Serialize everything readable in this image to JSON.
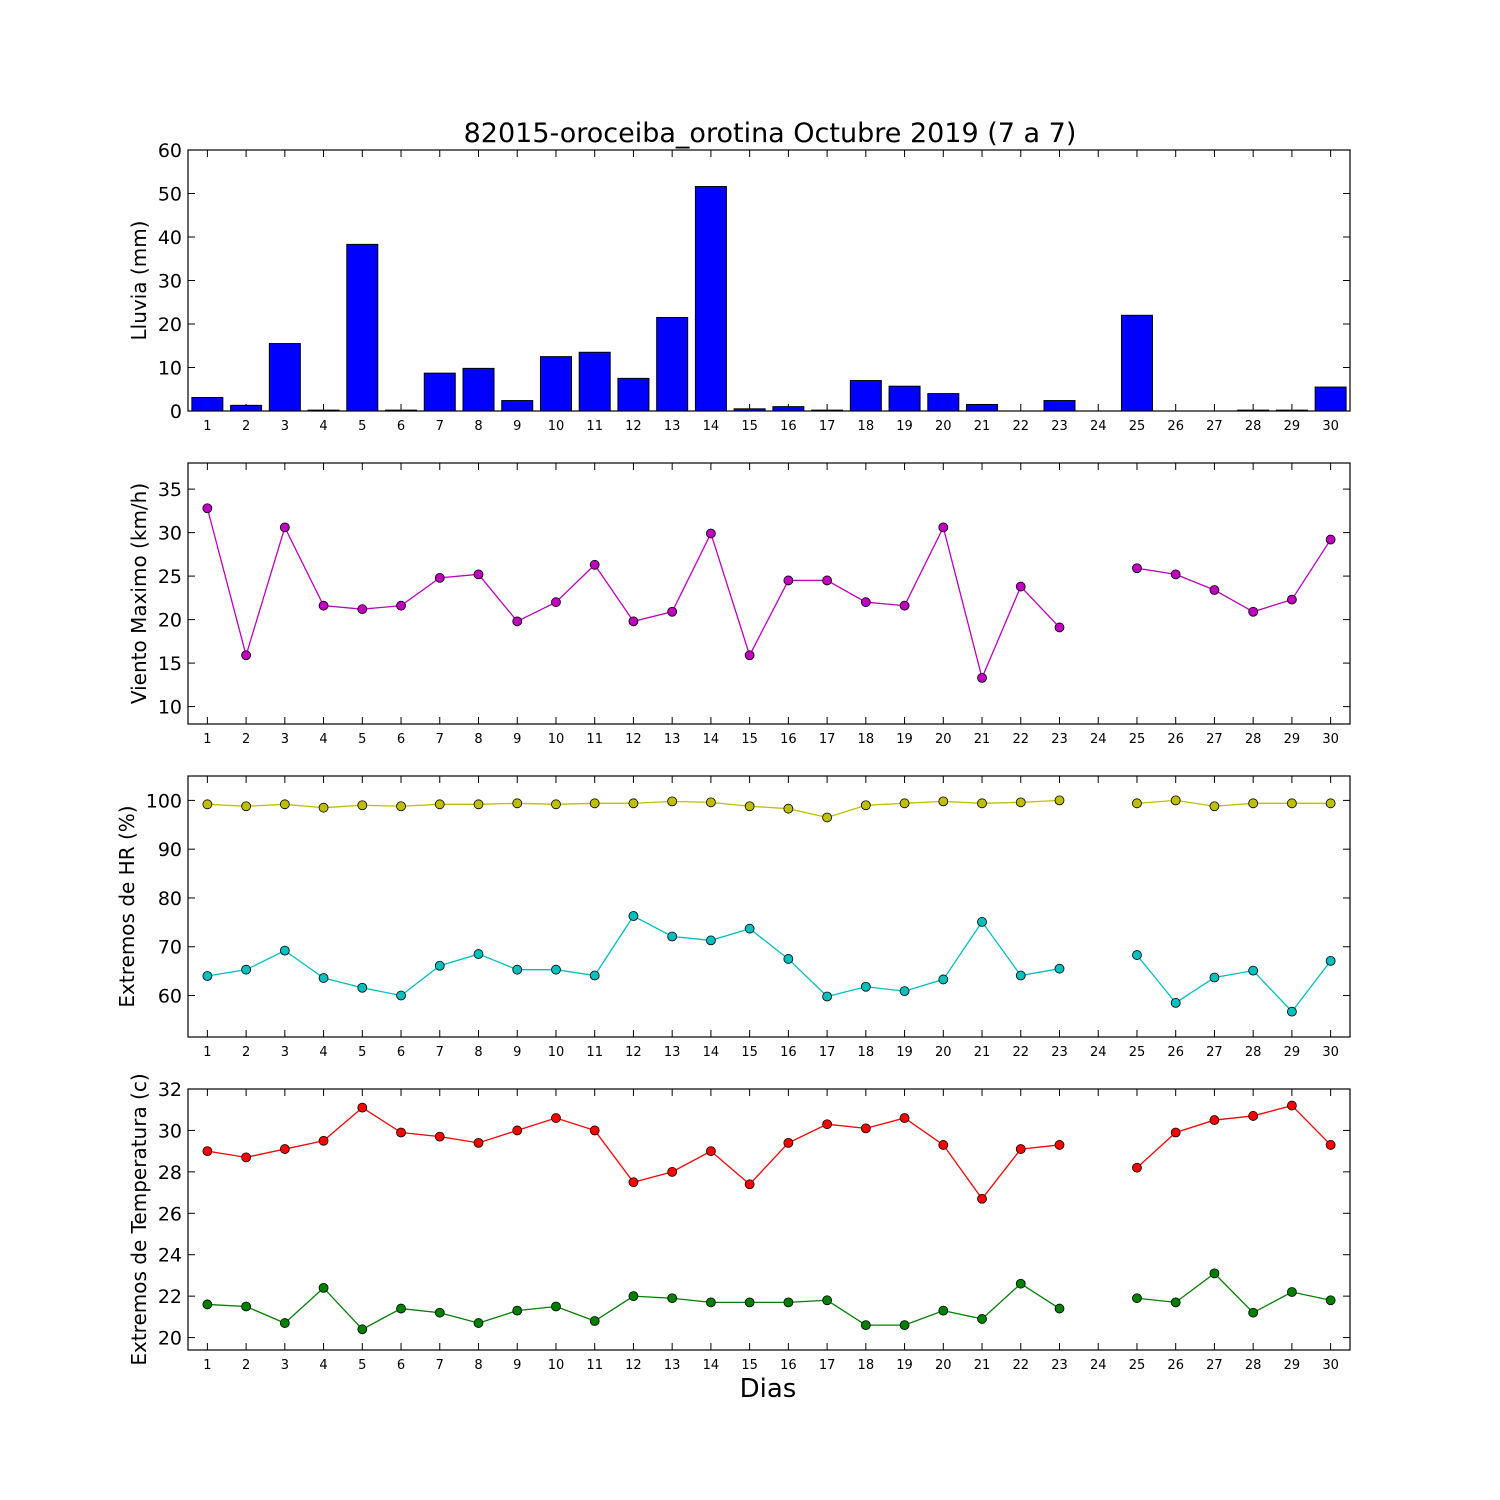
{
  "title": "82015-oroceiba_orotina Octubre 2019  (7 a 7)",
  "xlabel": "Dias",
  "colors": {
    "rain": "#0000ff",
    "wind": "#bf00bf",
    "hr_max": "#bfbf00",
    "hr_min": "#00bfbf",
    "temp_max": "#ff0000",
    "temp_min": "#008000"
  },
  "chart_data": [
    {
      "type": "bar",
      "ylabel": "Lluvia (mm)",
      "ylim": [
        0,
        60
      ],
      "yticks": [
        0,
        10,
        20,
        30,
        40,
        50,
        60
      ],
      "categories": [
        "1",
        "2",
        "3",
        "4",
        "5",
        "6",
        "7",
        "8",
        "9",
        "10",
        "11",
        "12",
        "13",
        "14",
        "15",
        "16",
        "17",
        "18",
        "19",
        "20",
        "21",
        "22",
        "23",
        "24",
        "25",
        "26",
        "27",
        "28",
        "29",
        "30"
      ],
      "values": [
        3.1,
        1.3,
        15.5,
        0.2,
        38.3,
        0.2,
        8.7,
        9.8,
        2.4,
        12.5,
        13.5,
        7.5,
        21.5,
        51.6,
        0.5,
        1.0,
        0.2,
        7.0,
        5.7,
        4.0,
        1.5,
        0.0,
        2.4,
        null,
        22.0,
        0.0,
        0.0,
        0.2,
        0.2,
        5.5
      ]
    },
    {
      "type": "line",
      "ylabel": "Viento Maximo (km/h)",
      "ylim": [
        8,
        38
      ],
      "yticks": [
        10,
        15,
        20,
        25,
        30,
        35
      ],
      "categories": [
        "1",
        "2",
        "3",
        "4",
        "5",
        "6",
        "7",
        "8",
        "9",
        "10",
        "11",
        "12",
        "13",
        "14",
        "15",
        "16",
        "17",
        "18",
        "19",
        "20",
        "21",
        "22",
        "23",
        "24",
        "25",
        "26",
        "27",
        "28",
        "29",
        "30"
      ],
      "series": [
        {
          "color_key": "wind",
          "values": [
            32.8,
            15.9,
            30.6,
            21.6,
            21.2,
            21.6,
            24.8,
            25.2,
            19.8,
            22.0,
            26.3,
            19.8,
            20.9,
            29.9,
            15.9,
            24.5,
            24.5,
            22.0,
            21.6,
            30.6,
            13.3,
            23.8,
            19.1,
            null,
            25.9,
            25.2,
            23.4,
            20.9,
            22.3,
            29.2
          ]
        }
      ]
    },
    {
      "type": "line",
      "ylabel": "Extremos de HR (%)",
      "ylim": [
        51.5,
        105
      ],
      "yticks": [
        60,
        70,
        80,
        90,
        100
      ],
      "categories": [
        "1",
        "2",
        "3",
        "4",
        "5",
        "6",
        "7",
        "8",
        "9",
        "10",
        "11",
        "12",
        "13",
        "14",
        "15",
        "16",
        "17",
        "18",
        "19",
        "20",
        "21",
        "22",
        "23",
        "24",
        "25",
        "26",
        "27",
        "28",
        "29",
        "30"
      ],
      "series": [
        {
          "color_key": "hr_max",
          "values": [
            99.2,
            98.8,
            99.2,
            98.5,
            99.0,
            98.8,
            99.2,
            99.2,
            99.4,
            99.2,
            99.4,
            99.4,
            99.8,
            99.6,
            98.8,
            98.3,
            96.5,
            99.0,
            99.4,
            99.8,
            99.4,
            99.6,
            100.0,
            null,
            99.4,
            100.0,
            98.8,
            99.4,
            99.4,
            99.4
          ]
        },
        {
          "color_key": "hr_min",
          "values": [
            64.0,
            65.3,
            69.2,
            63.6,
            61.6,
            60.0,
            66.1,
            68.5,
            65.3,
            65.3,
            64.1,
            76.3,
            72.1,
            71.3,
            73.7,
            67.5,
            59.8,
            61.8,
            60.9,
            63.3,
            75.1,
            64.1,
            65.5,
            null,
            68.3,
            58.5,
            63.7,
            65.1,
            56.7,
            67.1
          ]
        }
      ]
    },
    {
      "type": "line",
      "ylabel": "Extremos de Temperatura (c)",
      "ylim": [
        19.4,
        32
      ],
      "yticks": [
        20,
        22,
        24,
        26,
        28,
        30,
        32
      ],
      "categories": [
        "1",
        "2",
        "3",
        "4",
        "5",
        "6",
        "7",
        "8",
        "9",
        "10",
        "11",
        "12",
        "13",
        "14",
        "15",
        "16",
        "17",
        "18",
        "19",
        "20",
        "21",
        "22",
        "23",
        "24",
        "25",
        "26",
        "27",
        "28",
        "29",
        "30"
      ],
      "series": [
        {
          "color_key": "temp_max",
          "values": [
            29.0,
            28.7,
            29.1,
            29.5,
            31.1,
            29.9,
            29.7,
            29.4,
            30.0,
            30.6,
            30.0,
            27.5,
            28.0,
            29.0,
            27.4,
            29.4,
            30.3,
            30.1,
            30.6,
            29.3,
            26.7,
            29.1,
            29.3,
            null,
            28.2,
            29.9,
            30.5,
            30.7,
            31.2,
            29.3
          ]
        },
        {
          "color_key": "temp_min",
          "values": [
            21.6,
            21.5,
            20.7,
            22.4,
            20.4,
            21.4,
            21.2,
            20.7,
            21.3,
            21.5,
            20.8,
            22.0,
            21.9,
            21.7,
            21.7,
            21.7,
            21.8,
            20.6,
            20.6,
            21.3,
            20.9,
            22.6,
            21.4,
            null,
            21.9,
            21.7,
            23.1,
            21.2,
            22.2,
            21.8
          ]
        }
      ]
    }
  ]
}
